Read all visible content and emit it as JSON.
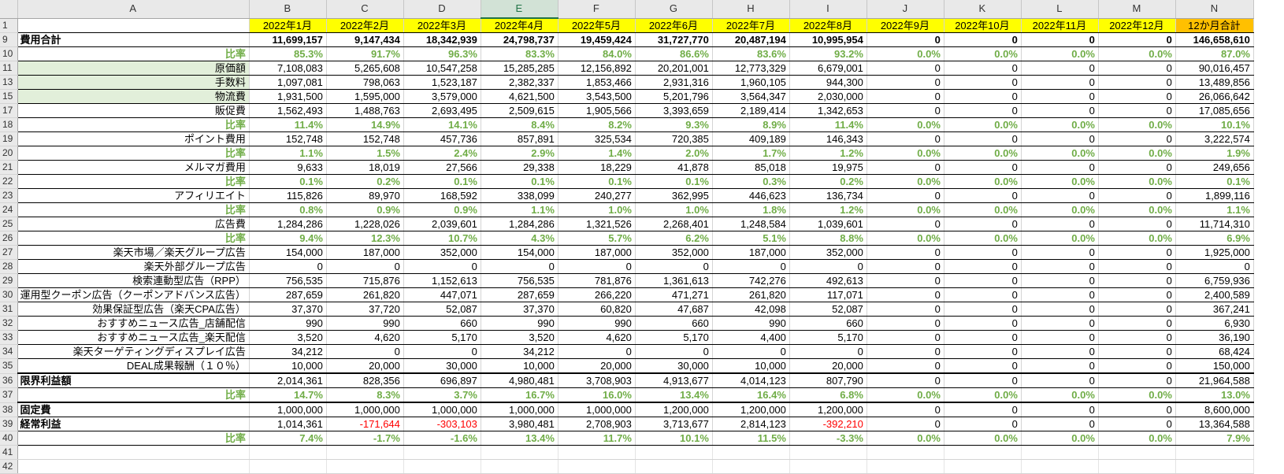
{
  "columns": [
    "A",
    "B",
    "C",
    "D",
    "E",
    "F",
    "G",
    "H",
    "I",
    "J",
    "K",
    "L",
    "M",
    "N"
  ],
  "selected_column": "E",
  "rows": [
    {
      "num": "1",
      "type": "month",
      "a": "",
      "values": [
        "2022年1月",
        "2022年2月",
        "2022年3月",
        "2022年4月",
        "2022年5月",
        "2022年6月",
        "2022年7月",
        "2022年8月",
        "2022年9月",
        "2022年10月",
        "2022年11月",
        "2022年12月",
        "12か月合計"
      ]
    },
    {
      "num": "9",
      "type": "bold",
      "a": "費用合計",
      "align": "left",
      "values": [
        "11,699,157",
        "9,147,434",
        "18,342,939",
        "24,798,737",
        "19,459,424",
        "31,727,770",
        "20,487,194",
        "10,995,954",
        "0",
        "0",
        "0",
        "0",
        "146,658,610"
      ]
    },
    {
      "num": "10",
      "type": "pct",
      "a": "比率",
      "align": "right",
      "values": [
        "85.3%",
        "91.7%",
        "96.3%",
        "83.3%",
        "84.0%",
        "86.6%",
        "83.6%",
        "93.2%",
        "0.0%",
        "0.0%",
        "0.0%",
        "0.0%",
        "87.0%"
      ]
    },
    {
      "num": "11",
      "type": "plain",
      "a": "原価額",
      "align": "right",
      "green": true,
      "values": [
        "7,108,083",
        "5,265,608",
        "10,547,258",
        "15,285,285",
        "12,156,892",
        "20,201,001",
        "12,773,329",
        "6,679,001",
        "0",
        "0",
        "0",
        "0",
        "90,016,457"
      ]
    },
    {
      "num": "13",
      "type": "plain",
      "a": "手数料",
      "align": "right",
      "green": true,
      "values": [
        "1,097,081",
        "798,063",
        "1,523,187",
        "2,382,337",
        "1,853,466",
        "2,931,316",
        "1,960,105",
        "944,300",
        "0",
        "0",
        "0",
        "0",
        "13,489,856"
      ]
    },
    {
      "num": "15",
      "type": "plain",
      "a": "物流費",
      "align": "right",
      "green": true,
      "values": [
        "1,931,500",
        "1,595,000",
        "3,579,000",
        "4,621,500",
        "3,543,500",
        "5,201,796",
        "3,564,347",
        "2,030,000",
        "0",
        "0",
        "0",
        "0",
        "26,066,642"
      ]
    },
    {
      "num": "17",
      "type": "plain",
      "a": "販促費",
      "align": "right",
      "values": [
        "1,562,493",
        "1,488,763",
        "2,693,495",
        "2,509,615",
        "1,905,566",
        "3,393,659",
        "2,189,414",
        "1,342,653",
        "0",
        "0",
        "0",
        "0",
        "17,085,656"
      ]
    },
    {
      "num": "18",
      "type": "pct",
      "a": "比率",
      "align": "right",
      "values": [
        "11.4%",
        "14.9%",
        "14.1%",
        "8.4%",
        "8.2%",
        "9.3%",
        "8.9%",
        "11.4%",
        "0.0%",
        "0.0%",
        "0.0%",
        "0.0%",
        "10.1%"
      ]
    },
    {
      "num": "19",
      "type": "plain",
      "a": "ポイント費用",
      "align": "right",
      "values": [
        "152,748",
        "152,748",
        "457,736",
        "857,891",
        "325,534",
        "720,385",
        "409,189",
        "146,343",
        "0",
        "0",
        "0",
        "0",
        "3,222,574"
      ]
    },
    {
      "num": "20",
      "type": "pct",
      "a": "比率",
      "align": "right",
      "values": [
        "1.1%",
        "1.5%",
        "2.4%",
        "2.9%",
        "1.4%",
        "2.0%",
        "1.7%",
        "1.2%",
        "0.0%",
        "0.0%",
        "0.0%",
        "0.0%",
        "1.9%"
      ]
    },
    {
      "num": "21",
      "type": "plain",
      "a": "メルマガ費用",
      "align": "right",
      "values": [
        "9,633",
        "18,019",
        "27,566",
        "29,338",
        "18,229",
        "41,878",
        "85,018",
        "19,975",
        "0",
        "0",
        "0",
        "0",
        "249,656"
      ]
    },
    {
      "num": "22",
      "type": "pct",
      "a": "比率",
      "align": "right",
      "values": [
        "0.1%",
        "0.2%",
        "0.1%",
        "0.1%",
        "0.1%",
        "0.1%",
        "0.3%",
        "0.2%",
        "0.0%",
        "0.0%",
        "0.0%",
        "0.0%",
        "0.1%"
      ]
    },
    {
      "num": "23",
      "type": "plain",
      "a": "アフィリエイト",
      "align": "right",
      "values": [
        "115,826",
        "89,970",
        "168,592",
        "338,099",
        "240,277",
        "362,995",
        "446,623",
        "136,734",
        "0",
        "0",
        "0",
        "0",
        "1,899,116"
      ]
    },
    {
      "num": "24",
      "type": "pct",
      "a": "比率",
      "align": "right",
      "values": [
        "0.8%",
        "0.9%",
        "0.9%",
        "1.1%",
        "1.0%",
        "1.0%",
        "1.8%",
        "1.2%",
        "0.0%",
        "0.0%",
        "0.0%",
        "0.0%",
        "1.1%"
      ]
    },
    {
      "num": "25",
      "type": "plain",
      "a": "広告費",
      "align": "right",
      "values": [
        "1,284,286",
        "1,228,026",
        "2,039,601",
        "1,284,286",
        "1,321,526",
        "2,268,401",
        "1,248,584",
        "1,039,601",
        "0",
        "0",
        "0",
        "0",
        "11,714,310"
      ]
    },
    {
      "num": "26",
      "type": "pct",
      "a": "比率",
      "align": "right",
      "values": [
        "9.4%",
        "12.3%",
        "10.7%",
        "4.3%",
        "5.7%",
        "6.2%",
        "5.1%",
        "8.8%",
        "0.0%",
        "0.0%",
        "0.0%",
        "0.0%",
        "6.9%"
      ]
    },
    {
      "num": "27",
      "type": "plain",
      "a": "楽天市場／楽天グループ広告",
      "align": "right",
      "values": [
        "154,000",
        "187,000",
        "352,000",
        "154,000",
        "187,000",
        "352,000",
        "187,000",
        "352,000",
        "0",
        "0",
        "0",
        "0",
        "1,925,000"
      ]
    },
    {
      "num": "28",
      "type": "plain",
      "a": "楽天外部グループ広告",
      "align": "right",
      "values": [
        "0",
        "0",
        "0",
        "0",
        "0",
        "0",
        "0",
        "0",
        "0",
        "0",
        "0",
        "0",
        "0"
      ]
    },
    {
      "num": "29",
      "type": "plain",
      "a": "検索連動型広告（RPP）",
      "align": "right",
      "values": [
        "756,535",
        "715,876",
        "1,152,613",
        "756,535",
        "781,876",
        "1,361,613",
        "742,276",
        "492,613",
        "0",
        "0",
        "0",
        "0",
        "6,759,936"
      ]
    },
    {
      "num": "30",
      "type": "plain",
      "a": "運用型クーポン広告（クーポンアドバンス広告）",
      "align": "right",
      "values": [
        "287,659",
        "261,820",
        "447,071",
        "287,659",
        "266,220",
        "471,271",
        "261,820",
        "117,071",
        "0",
        "0",
        "0",
        "0",
        "2,400,589"
      ]
    },
    {
      "num": "31",
      "type": "plain",
      "a": "効果保証型広告（楽天CPA広告）",
      "align": "right",
      "values": [
        "37,370",
        "37,720",
        "52,087",
        "37,370",
        "60,820",
        "47,687",
        "42,098",
        "52,087",
        "0",
        "0",
        "0",
        "0",
        "367,241"
      ]
    },
    {
      "num": "32",
      "type": "plain",
      "a": "おすすめニュース広告_店舗配信",
      "align": "right",
      "values": [
        "990",
        "990",
        "660",
        "990",
        "990",
        "660",
        "990",
        "660",
        "0",
        "0",
        "0",
        "0",
        "6,930"
      ]
    },
    {
      "num": "33",
      "type": "plain",
      "a": "おすすめニュース広告_楽天配信",
      "align": "right",
      "values": [
        "3,520",
        "4,620",
        "5,170",
        "3,520",
        "4,620",
        "5,170",
        "4,400",
        "5,170",
        "0",
        "0",
        "0",
        "0",
        "36,190"
      ]
    },
    {
      "num": "34",
      "type": "plain",
      "a": "楽天ターゲティングディスプレイ広告",
      "align": "right",
      "values": [
        "34,212",
        "0",
        "0",
        "34,212",
        "0",
        "0",
        "0",
        "0",
        "0",
        "0",
        "0",
        "0",
        "68,424"
      ]
    },
    {
      "num": "35",
      "type": "plain",
      "a": "DEAL成果報酬（１０％）",
      "align": "right",
      "values": [
        "10,000",
        "20,000",
        "30,000",
        "10,000",
        "20,000",
        "30,000",
        "10,000",
        "20,000",
        "0",
        "0",
        "0",
        "0",
        "150,000"
      ]
    },
    {
      "num": "36",
      "type": "plain",
      "a": "限界利益額",
      "align": "left",
      "thick": true,
      "values": [
        "2,014,361",
        "828,356",
        "696,897",
        "4,980,481",
        "3,708,903",
        "4,913,677",
        "4,014,123",
        "807,790",
        "0",
        "0",
        "0",
        "0",
        "21,964,588"
      ]
    },
    {
      "num": "37",
      "type": "pct",
      "a": "比率",
      "align": "right",
      "values": [
        "14.7%",
        "8.3%",
        "3.7%",
        "16.7%",
        "16.0%",
        "13.4%",
        "16.4%",
        "6.8%",
        "0.0%",
        "0.0%",
        "0.0%",
        "0.0%",
        "13.0%"
      ]
    },
    {
      "num": "38",
      "type": "plain",
      "a": "固定費",
      "align": "left",
      "thick": true,
      "values": [
        "1,000,000",
        "1,000,000",
        "1,000,000",
        "1,000,000",
        "1,000,000",
        "1,200,000",
        "1,200,000",
        "1,200,000",
        "0",
        "0",
        "0",
        "0",
        "8,600,000"
      ]
    },
    {
      "num": "39",
      "type": "plain",
      "a": "経常利益",
      "align": "left",
      "values": [
        "1,014,361",
        "-171,644",
        "-303,103",
        "3,980,481",
        "2,708,903",
        "3,713,677",
        "2,814,123",
        "-392,210",
        "0",
        "0",
        "0",
        "0",
        "13,364,588"
      ]
    },
    {
      "num": "40",
      "type": "pct",
      "a": "比率",
      "align": "right",
      "values": [
        "7.4%",
        "-1.7%",
        "-1.6%",
        "13.4%",
        "11.7%",
        "10.1%",
        "11.5%",
        "-3.3%",
        "0.0%",
        "0.0%",
        "0.0%",
        "0.0%",
        "7.9%"
      ]
    },
    {
      "num": "41",
      "type": "empty",
      "a": "",
      "values": [
        "",
        "",
        "",
        "",
        "",
        "",
        "",
        "",
        "",
        "",
        "",
        "",
        ""
      ]
    },
    {
      "num": "42",
      "type": "empty",
      "a": "",
      "values": [
        "",
        "",
        "",
        "",
        "",
        "",
        "",
        "",
        "",
        "",
        "",
        "",
        ""
      ]
    }
  ],
  "colors": {
    "month_header": "#ffff00",
    "total_header": "#ffc000",
    "pct_text": "#70ad47",
    "negative": "#ff0000",
    "label_fill": "#e2efda",
    "selected_col": "#217346"
  }
}
